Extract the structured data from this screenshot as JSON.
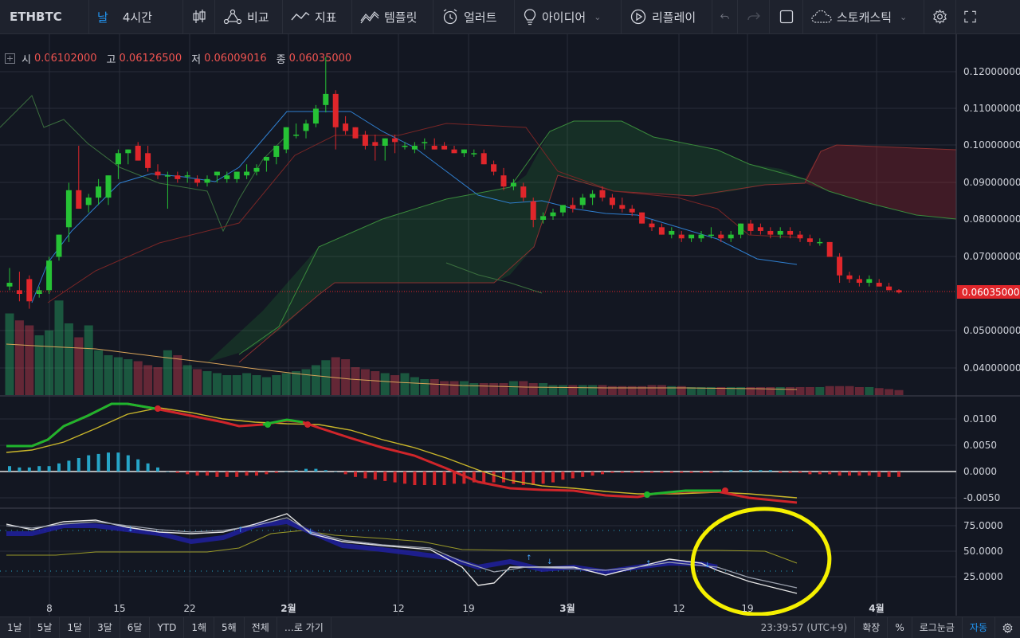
{
  "toolbar": {
    "symbol": "ETHBTC",
    "interval_day": "날",
    "interval": "4시간",
    "compare": "비교",
    "indicators": "지표",
    "templates": "템플릿",
    "alert": "얼러트",
    "ideas": "아이디어",
    "replay": "리플레이",
    "stochastic": "스토캐스틱"
  },
  "ohlc": {
    "open_label": "시",
    "open": "0.06102000",
    "high_label": "고",
    "high": "0.06126500",
    "low_label": "저",
    "low": "0.06009016",
    "close_label": "종",
    "close": "0.06035000"
  },
  "price_axis": [
    "0.12000000",
    "0.11000000",
    "0.10000000",
    "0.09000000",
    "0.08000000",
    "0.07000000",
    "0.05000000",
    "0.04000000"
  ],
  "current_price_label": "0.06035000",
  "macd_axis": [
    "0.0100",
    "0.0050",
    "0.0000",
    "-0.0050"
  ],
  "stoch_axis": [
    "75.0000",
    "50.0000",
    "25.0000"
  ],
  "time_axis": [
    "8",
    "15",
    "22",
    "2월",
    "12",
    "19",
    "3월",
    "12",
    "19",
    "4월"
  ],
  "bottom_bar": {
    "ranges": [
      "1날",
      "5날",
      "1달",
      "3달",
      "6달",
      "YTD",
      "1해",
      "5해",
      "전체",
      "…로 가기"
    ],
    "clock": "23:39:57 (UTC+9)",
    "extend": "확장",
    "percent": "%",
    "log": "로그눈금",
    "auto": "자동"
  },
  "colors": {
    "up": "#26c235",
    "down": "#e0262b",
    "background": "#131722",
    "annotation": "#f5f000"
  }
}
